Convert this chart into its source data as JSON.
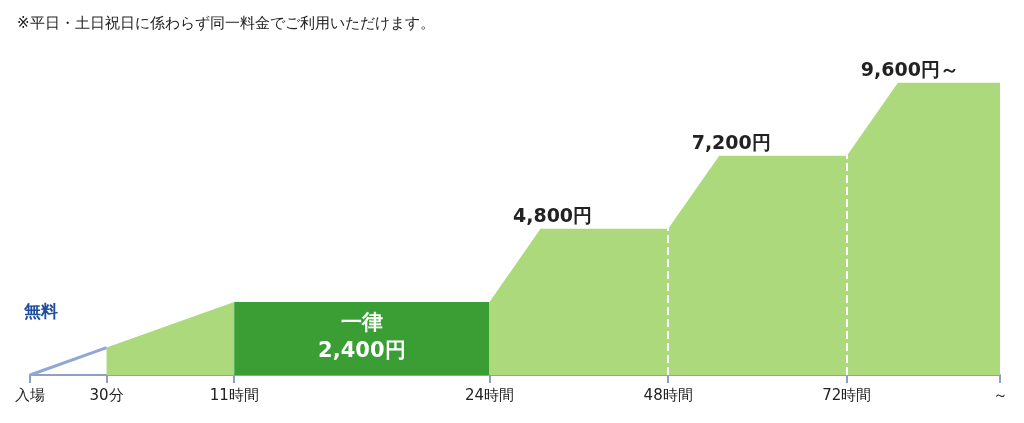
{
  "chart_data": {
    "type": "area",
    "title": "※平日・土日祝日に係わらず同一料金でご利用いただけます。",
    "categories": [
      "入場",
      null,
      null,
      "30分",
      null,
      null,
      null,
      null,
      "11時間",
      null,
      null,
      null,
      null,
      null,
      null,
      null,
      null,
      null,
      "24時間",
      null,
      null,
      null,
      null,
      null,
      null,
      "48時間",
      null,
      null,
      null,
      null,
      null,
      null,
      "72時間",
      null,
      null,
      null,
      null,
      null,
      "～"
    ],
    "series": [
      {
        "type": "line",
        "color": "#8fa8d6",
        "values": [
          0,
          null,
          null,
          900,
          null,
          null,
          null,
          null,
          null,
          null,
          null,
          null,
          null,
          null,
          null,
          null,
          null,
          null,
          null,
          null,
          null,
          null,
          null,
          null,
          null,
          null,
          null,
          null,
          null,
          null,
          null,
          null,
          null,
          null,
          null,
          null,
          null,
          null,
          null
        ]
      },
      {
        "color": "#acd97b",
        "values": [
          null,
          null,
          null,
          900,
          null,
          null,
          null,
          null,
          2400,
          null,
          null,
          null,
          null,
          null,
          null,
          null,
          null,
          null,
          null,
          null,
          null,
          null,
          null,
          null,
          null,
          null,
          null,
          null,
          null,
          null,
          null,
          null,
          null,
          null,
          null,
          null,
          null,
          null,
          null
        ]
      },
      {
        "color": "#3a9e34",
        "values": [
          null,
          null,
          null,
          null,
          null,
          null,
          null,
          null,
          2400,
          null,
          null,
          null,
          null,
          2400,
          null,
          null,
          null,
          null,
          2400,
          null,
          null,
          null,
          null,
          null,
          null,
          null,
          null,
          null,
          null,
          null,
          null,
          null,
          null,
          null,
          null,
          null,
          null,
          null,
          null
        ],
        "value_labels": [
          null,
          null,
          null,
          null,
          null,
          null,
          null,
          null,
          null,
          null,
          null,
          null,
          null,
          "一律\n2,400円",
          null,
          null,
          null,
          null,
          null,
          null,
          null,
          null,
          null,
          null,
          null,
          null,
          null,
          null,
          null,
          null,
          null,
          null,
          null,
          null,
          null,
          null,
          null,
          null,
          null
        ]
      },
      {
        "color": "#acd97b",
        "values": [
          null,
          null,
          null,
          null,
          null,
          null,
          null,
          null,
          null,
          null,
          null,
          null,
          null,
          null,
          null,
          null,
          null,
          null,
          2400,
          null,
          4800,
          null,
          null,
          null,
          null,
          4800,
          null,
          7200,
          null,
          null,
          null,
          null,
          7200,
          null,
          9600,
          null,
          null,
          null,
          9600
        ],
        "value_labels": [
          null,
          null,
          null,
          null,
          null,
          null,
          null,
          null,
          null,
          null,
          null,
          null,
          null,
          null,
          null,
          null,
          null,
          null,
          null,
          null,
          "4,800円",
          null,
          null,
          null,
          null,
          null,
          null,
          "7,200円",
          null,
          null,
          null,
          null,
          null,
          null,
          "9,600円～",
          null,
          null,
          null,
          null
        ]
      }
    ],
    "ylim": [
      0,
      11000
    ],
    "tick_labels": "x",
    "ref_lines": [
      {
        "axis": "x",
        "value": "48時間",
        "color": "#ffffff",
        "line_style": "dashed"
      },
      {
        "axis": "x",
        "value": "72時間",
        "color": "#ffffff",
        "line_style": "dashed"
      }
    ],
    "annotations": [
      "無料"
    ]
  }
}
